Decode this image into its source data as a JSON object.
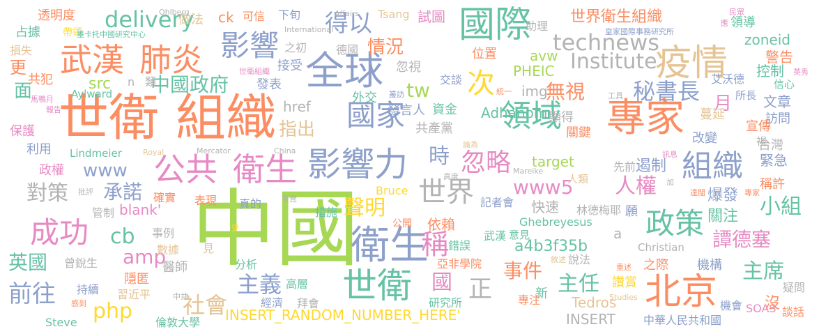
{
  "palette": [
    "#fc8d62",
    "#66c2a5",
    "#8da0cb",
    "#e78ac3",
    "#a6d854",
    "#ffd92f",
    "#e5c494",
    "#b3b3b3"
  ],
  "words": [
    {
      "t": "中國",
      "c": "#a6d854"
    },
    {
      "t": "世衛",
      "c": "#fc8d62"
    },
    {
      "t": "組織",
      "c": "#fc8d62"
    },
    {
      "t": "專家",
      "c": "#fc8d62"
    },
    {
      "t": "衛生",
      "c": "#8da0cb"
    },
    {
      "t": "全球",
      "c": "#8da0cb"
    },
    {
      "t": "疫情",
      "c": "#e5c494"
    },
    {
      "t": "國際",
      "c": "#66c2a5"
    },
    {
      "t": "影響力",
      "c": "#8da0cb"
    },
    {
      "t": "公共",
      "c": "#e78ac3"
    },
    {
      "t": "衛生",
      "c": "#e78ac3"
    },
    {
      "t": "世衛",
      "c": "#66c2a5"
    },
    {
      "t": "北京",
      "c": "#fc8d62"
    },
    {
      "t": "武漢",
      "c": "#fc8d62"
    },
    {
      "t": "肺炎",
      "c": "#fc8d62"
    },
    {
      "t": "影響",
      "c": "#8da0cb"
    },
    {
      "t": "國家",
      "c": "#8da0cb"
    },
    {
      "t": "領域",
      "c": "#66c2a5"
    },
    {
      "t": "組織",
      "c": "#8da0cb"
    },
    {
      "t": "世界",
      "c": "#b3b3b3"
    },
    {
      "t": "政策",
      "c": "#66c2a5"
    },
    {
      "t": "成功",
      "c": "#e78ac3"
    },
    {
      "t": "得以",
      "c": "#8da0cb"
    },
    {
      "t": "delivery",
      "c": "#66c2a5"
    },
    {
      "t": "technews",
      "c": "#b3b3b3"
    },
    {
      "t": "Institute",
      "c": "#b3b3b3"
    },
    {
      "t": "中國政府",
      "c": "#66c2a5"
    },
    {
      "t": "秘書長",
      "c": "#8da0cb"
    },
    {
      "t": "世界衛生組織",
      "c": "#fc8d62"
    },
    {
      "t": "情況",
      "c": "#fc8d62"
    },
    {
      "t": "次",
      "c": "#ffd92f"
    },
    {
      "t": "無視",
      "c": "#fc8d62"
    },
    {
      "t": "www5",
      "c": "#e78ac3"
    },
    {
      "t": "www",
      "c": "#8da0cb"
    },
    {
      "t": "對策",
      "c": "#b3b3b3"
    },
    {
      "t": "承諾",
      "c": "#8da0cb"
    },
    {
      "t": "amp",
      "c": "#e78ac3"
    },
    {
      "t": "cb",
      "c": "#66c2a5"
    },
    {
      "t": "php",
      "c": "#ffd92f"
    },
    {
      "t": "社會",
      "c": "#e5c494"
    },
    {
      "t": "主義",
      "c": "#8da0cb"
    },
    {
      "t": "聲明",
      "c": "#ffd92f"
    },
    {
      "t": "稱",
      "c": "#e78ac3"
    },
    {
      "t": "時",
      "c": "#8da0cb"
    },
    {
      "t": "忽略",
      "c": "#e78ac3"
    },
    {
      "t": "人權",
      "c": "#e78ac3"
    },
    {
      "t": "主任",
      "c": "#66c2a5"
    },
    {
      "t": "事件",
      "c": "#fc8d62"
    },
    {
      "t": "主席",
      "c": "#66c2a5"
    },
    {
      "t": "譚德塞",
      "c": "#e78ac3"
    },
    {
      "t": "小組",
      "c": "#66c2a5"
    },
    {
      "t": "英國",
      "c": "#66c2a5"
    },
    {
      "t": "前往",
      "c": "#8da0cb"
    },
    {
      "t": "國",
      "c": "#e78ac3"
    },
    {
      "t": "正",
      "c": "#b3b3b3"
    },
    {
      "t": "a4b3f35b",
      "c": "#66c2a5"
    },
    {
      "t": "INSERT_RANDOM_NUMBER_HERE'",
      "c": "#ffd92f"
    },
    {
      "t": "INSERT",
      "c": "#b3b3b3"
    },
    {
      "t": "Tedros",
      "c": "#e5c494"
    },
    {
      "t": "Adhanom",
      "c": "#66c2a5"
    },
    {
      "t": "PHEIC",
      "c": "#a6d854"
    },
    {
      "t": "avw",
      "c": "#a6d854"
    },
    {
      "t": "img",
      "c": "#b3b3b3"
    },
    {
      "t": "tw",
      "c": "#a6d854"
    },
    {
      "t": "指出",
      "c": "#e5c494"
    },
    {
      "t": "href",
      "c": "#b3b3b3"
    },
    {
      "t": "src",
      "c": "#a6d854"
    },
    {
      "t": "Lindmeier",
      "c": "#66c2a5"
    },
    {
      "t": "blank'",
      "c": "#e78ac3"
    },
    {
      "t": "target",
      "c": "#a6d854"
    },
    {
      "t": "Ghebreyesus",
      "c": "#66c2a5"
    },
    {
      "t": "Christian",
      "c": "#b3b3b3"
    },
    {
      "t": "Steve",
      "c": "#66c2a5"
    },
    {
      "t": "SOAS",
      "c": "#e78ac3"
    },
    {
      "t": "Aylward",
      "c": "#66c2a5"
    },
    {
      "t": "zoneid",
      "c": "#66c2a5"
    },
    {
      "t": "ck",
      "c": "#fc8d62"
    },
    {
      "t": "Tsang",
      "c": "#e5c494"
    },
    {
      "t": "Bruce",
      "c": "#ffd92f"
    },
    {
      "t": "透明度",
      "c": "#fc8d62"
    },
    {
      "t": "占據",
      "c": "#66c2a5"
    },
    {
      "t": "帶領",
      "c": "#ffd92f"
    },
    {
      "t": "損失",
      "c": "#e5c494"
    },
    {
      "t": "更",
      "c": "#fc8d62"
    },
    {
      "t": "共犯",
      "c": "#fc8d62"
    },
    {
      "t": "面",
      "c": "#66c2a5"
    },
    {
      "t": "保護",
      "c": "#e78ac3"
    },
    {
      "t": "利用",
      "c": "#8da0cb"
    },
    {
      "t": "政權",
      "c": "#e78ac3"
    },
    {
      "t": "做法",
      "c": "#e5c494"
    },
    {
      "t": "可信",
      "c": "#fc8d62"
    },
    {
      "t": "下旬",
      "c": "#8da0cb"
    },
    {
      "t": "試圖",
      "c": "#e78ac3"
    },
    {
      "t": "助理",
      "c": "#b3b3b3"
    },
    {
      "t": "領導",
      "c": "#66c2a5"
    },
    {
      "t": "警告",
      "c": "#fc8d62"
    },
    {
      "t": "控制",
      "c": "#66c2a5"
    },
    {
      "t": "信心",
      "c": "#66c2a5"
    },
    {
      "t": "所長",
      "c": "#8da0cb"
    },
    {
      "t": "艾沃德",
      "c": "#8da0cb"
    },
    {
      "t": "月",
      "c": "#e78ac3"
    },
    {
      "t": "文章",
      "c": "#8da0cb"
    },
    {
      "t": "訪問",
      "c": "#8da0cb"
    },
    {
      "t": "宣傳",
      "c": "#fc8d62"
    },
    {
      "t": "蔓延",
      "c": "#e5c494"
    },
    {
      "t": "關鍵",
      "c": "#fc8d62"
    },
    {
      "t": "顯得",
      "c": "#b3b3b3"
    },
    {
      "t": "改變",
      "c": "#8da0cb"
    },
    {
      "t": "台灣",
      "c": "#b3b3b3"
    },
    {
      "t": "緊急",
      "c": "#8da0cb"
    },
    {
      "t": "遏制",
      "c": "#8da0cb"
    },
    {
      "t": "先前",
      "c": "#b3b3b3"
    },
    {
      "t": "稱許",
      "c": "#fc8d62"
    },
    {
      "t": "爆發",
      "c": "#8da0cb"
    },
    {
      "t": "關注",
      "c": "#66c2a5"
    },
    {
      "t": "願",
      "c": "#8da0cb"
    },
    {
      "t": "林德梅耶",
      "c": "#b3b3b3"
    },
    {
      "t": "快速",
      "c": "#b3b3b3"
    },
    {
      "t": "依賴",
      "c": "#fc8d62"
    },
    {
      "t": "公開",
      "c": "#fc8d62"
    },
    {
      "t": "記者會",
      "c": "#8da0cb"
    },
    {
      "t": "人類",
      "c": "#e5c494"
    },
    {
      "t": "機構",
      "c": "#8da0cb"
    },
    {
      "t": "之際",
      "c": "#fc8d62"
    },
    {
      "t": "說法",
      "c": "#b3b3b3"
    },
    {
      "t": "新",
      "c": "#66c2a5"
    },
    {
      "t": "專注",
      "c": "#fc8d62"
    },
    {
      "t": "讚賞",
      "c": "#ffd92f"
    },
    {
      "t": "疑問",
      "c": "#b3b3b3"
    },
    {
      "t": "沒",
      "c": "#fc8d62"
    },
    {
      "t": "機會",
      "c": "#8da0cb"
    },
    {
      "t": "談話",
      "c": "#fc8d62"
    },
    {
      "t": "中華人民共和國",
      "c": "#8da0cb"
    },
    {
      "t": "研究所",
      "c": "#66c2a5"
    },
    {
      "t": "拜會",
      "c": "#b3b3b3"
    },
    {
      "t": "高層",
      "c": "#66c2a5"
    },
    {
      "t": "經濟",
      "c": "#8da0cb"
    },
    {
      "t": "倫敦大學",
      "c": "#66c2a5"
    },
    {
      "t": "習近平",
      "c": "#e5c494"
    },
    {
      "t": "隱匿",
      "c": "#fc8d62"
    },
    {
      "t": "持續",
      "c": "#8da0cb"
    },
    {
      "t": "曾銳生",
      "c": "#b3b3b3"
    },
    {
      "t": "醫師",
      "c": "#b3b3b3"
    },
    {
      "t": "事例",
      "c": "#b3b3b3"
    },
    {
      "t": "數據",
      "c": "#e5c494"
    },
    {
      "t": "見",
      "c": "#e5c494"
    },
    {
      "t": "分析",
      "c": "#66c2a5"
    },
    {
      "t": "亞非學院",
      "c": "#fc8d62"
    },
    {
      "t": "錯誤",
      "c": "#66c2a5"
    },
    {
      "t": "意見",
      "c": "#66c2a5"
    },
    {
      "t": "武漢",
      "c": "#66c2a5"
    },
    {
      "t": "措施",
      "c": "#66c2a5"
    },
    {
      "t": "真的",
      "c": "#8da0cb"
    },
    {
      "t": "表現",
      "c": "#fc8d62"
    },
    {
      "t": "確實",
      "c": "#fc8d62"
    },
    {
      "t": "管制",
      "c": "#b3b3b3"
    },
    {
      "t": "位置",
      "c": "#fc8d62"
    },
    {
      "t": "交談",
      "c": "#8da0cb"
    },
    {
      "t": "資金",
      "c": "#66c2a5"
    },
    {
      "t": "發言人",
      "c": "#8da0cb"
    },
    {
      "t": "外交",
      "c": "#66c2a5"
    },
    {
      "t": "共產黨",
      "c": "#b3b3b3"
    },
    {
      "t": "發表",
      "c": "#8da0cb"
    },
    {
      "t": "接受",
      "c": "#8da0cb"
    },
    {
      "t": "德國",
      "c": "#b3b3b3"
    },
    {
      "t": "之初",
      "c": "#b3b3b3"
    },
    {
      "t": "忽視",
      "c": "#b3b3b3"
    },
    {
      "t": "n",
      "c": "#b3b3b3"
    },
    {
      "t": "類",
      "c": "#b3b3b3"
    },
    {
      "t": "a",
      "c": "#b3b3b3"
    },
    {
      "t": "視",
      "c": "#b3b3b3"
    },
    {
      "t": "Ohlberg",
      "c": "#b3b3b3"
    },
    {
      "t": "Affairs",
      "c": "#b3b3b3"
    },
    {
      "t": "International",
      "c": "#b3b3b3"
    },
    {
      "t": "Mercator",
      "c": "#b3b3b3"
    },
    {
      "t": "China",
      "c": "#b3b3b3"
    },
    {
      "t": "Royal",
      "c": "#e5c494"
    },
    {
      "t": "Mareike",
      "c": "#b3b3b3"
    },
    {
      "t": "Studies",
      "c": "#e5c494"
    },
    {
      "t": "墨卡托中國研究中心",
      "c": "#66c2a5"
    },
    {
      "t": "皇家國際事務研究所",
      "c": "#8da0cb"
    },
    {
      "t": "世衛組織",
      "c": "#e78ac3"
    },
    {
      "t": "馬鴨月",
      "c": "#e78ac3"
    },
    {
      "t": "報告",
      "c": "#e78ac3"
    },
    {
      "t": "英秀",
      "c": "#e78ac3"
    },
    {
      "t": "民眾",
      "c": "#e78ac3"
    },
    {
      "t": "應",
      "c": "#e78ac3"
    },
    {
      "t": "工具",
      "c": "#b3b3b3"
    },
    {
      "t": "統一",
      "c": "#fc8d62"
    },
    {
      "t": "叢訪",
      "c": "#8da0cb"
    },
    {
      "t": "論為",
      "c": "#e5c494"
    },
    {
      "t": "高度",
      "c": "#b3b3b3"
    },
    {
      "t": "訊息",
      "c": "#e78ac3"
    },
    {
      "t": "加",
      "c": "#b3b3b3"
    },
    {
      "t": "達闊",
      "c": "#fc8d62"
    },
    {
      "t": "專家",
      "c": "#fc8d62"
    },
    {
      "t": "批評",
      "c": "#b3b3b3"
    },
    {
      "t": "警覺",
      "c": "#b3b3b3"
    },
    {
      "t": "受",
      "c": "#ffd92f"
    },
    {
      "t": "敘述",
      "c": "#e5c494"
    },
    {
      "t": "重述",
      "c": "#fc8d62"
    },
    {
      "t": "中共",
      "c": "#b3b3b3"
    },
    {
      "t": "感到",
      "c": "#fc8d62"
    }
  ]
}
